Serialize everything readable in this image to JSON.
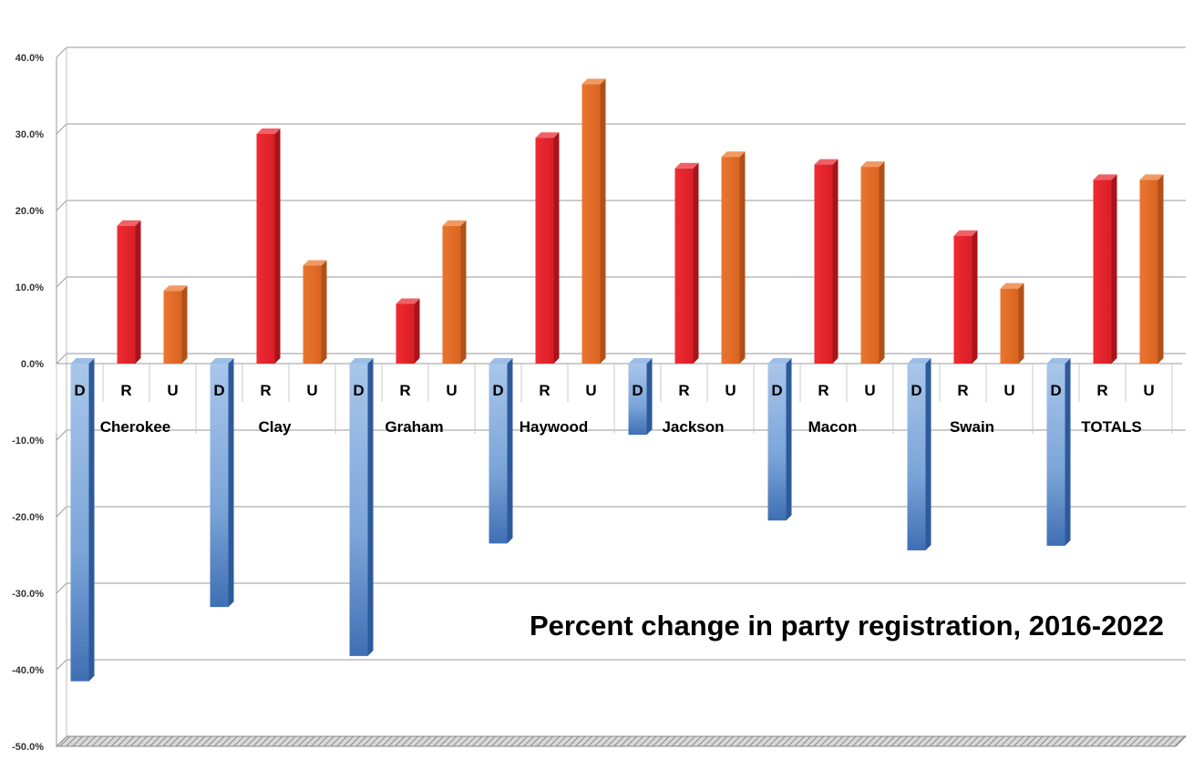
{
  "chart_data": {
    "type": "bar",
    "title": "Percent change in party registration, 2016-2022",
    "ylim": [
      -50,
      40
    ],
    "yticks": [
      40,
      30,
      20,
      10,
      0,
      -10,
      -20,
      -30,
      -40,
      -50
    ],
    "ytick_labels": [
      "40.0%",
      "30.0%",
      "20.0%",
      "10.0%",
      "0.0%",
      "-10.0%",
      "-20.0%",
      "-30.0%",
      "-40.0%",
      "-50.0%"
    ],
    "grid": true,
    "parties": [
      "D",
      "R",
      "U"
    ],
    "party_colors": {
      "D": "#4f81bd",
      "R": "#e8262d",
      "U": "#e46c23"
    },
    "groups": [
      {
        "name": "Cherokee",
        "values": [
          -41.5,
          18.0,
          9.5
        ]
      },
      {
        "name": "Clay",
        "values": [
          -31.8,
          30.0,
          12.8
        ]
      },
      {
        "name": "Graham",
        "values": [
          -38.2,
          7.8,
          18.0
        ]
      },
      {
        "name": "Haywood",
        "values": [
          -23.5,
          29.5,
          36.5
        ]
      },
      {
        "name": "Jackson",
        "values": [
          -9.3,
          25.5,
          27.0
        ]
      },
      {
        "name": "Macon",
        "values": [
          -20.5,
          26.0,
          25.7
        ]
      },
      {
        "name": "Swain",
        "values": [
          -24.4,
          16.7,
          9.8
        ]
      },
      {
        "name": "TOTALS",
        "values": [
          -23.8,
          24.0,
          24.0
        ]
      }
    ]
  }
}
